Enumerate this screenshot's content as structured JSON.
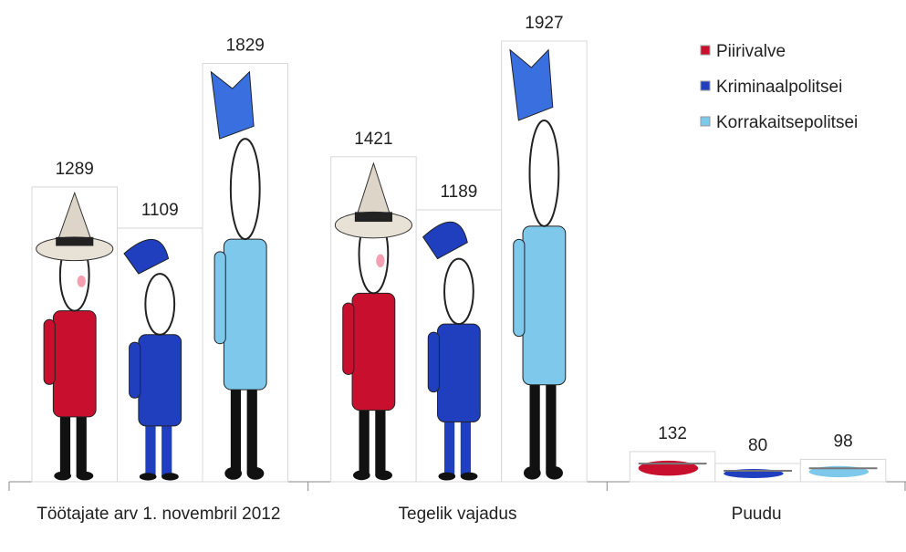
{
  "chart_data": {
    "type": "bar",
    "categories": [
      "Töötajate arv 1. novembril 2012",
      "Tegelik vajadus",
      "Puudu"
    ],
    "series": [
      {
        "name": "Piirivalve",
        "color": "#c8102e",
        "values": [
          1289,
          1421,
          132
        ]
      },
      {
        "name": "Kriminaalpolitsei",
        "color": "#1f3fbf",
        "values": [
          1109,
          1189,
          80
        ]
      },
      {
        "name": "Korrakaitsepolitsei",
        "color": "#7ec8ec",
        "values": [
          1829,
          1927,
          98
        ]
      }
    ],
    "legend": "top-right"
  }
}
